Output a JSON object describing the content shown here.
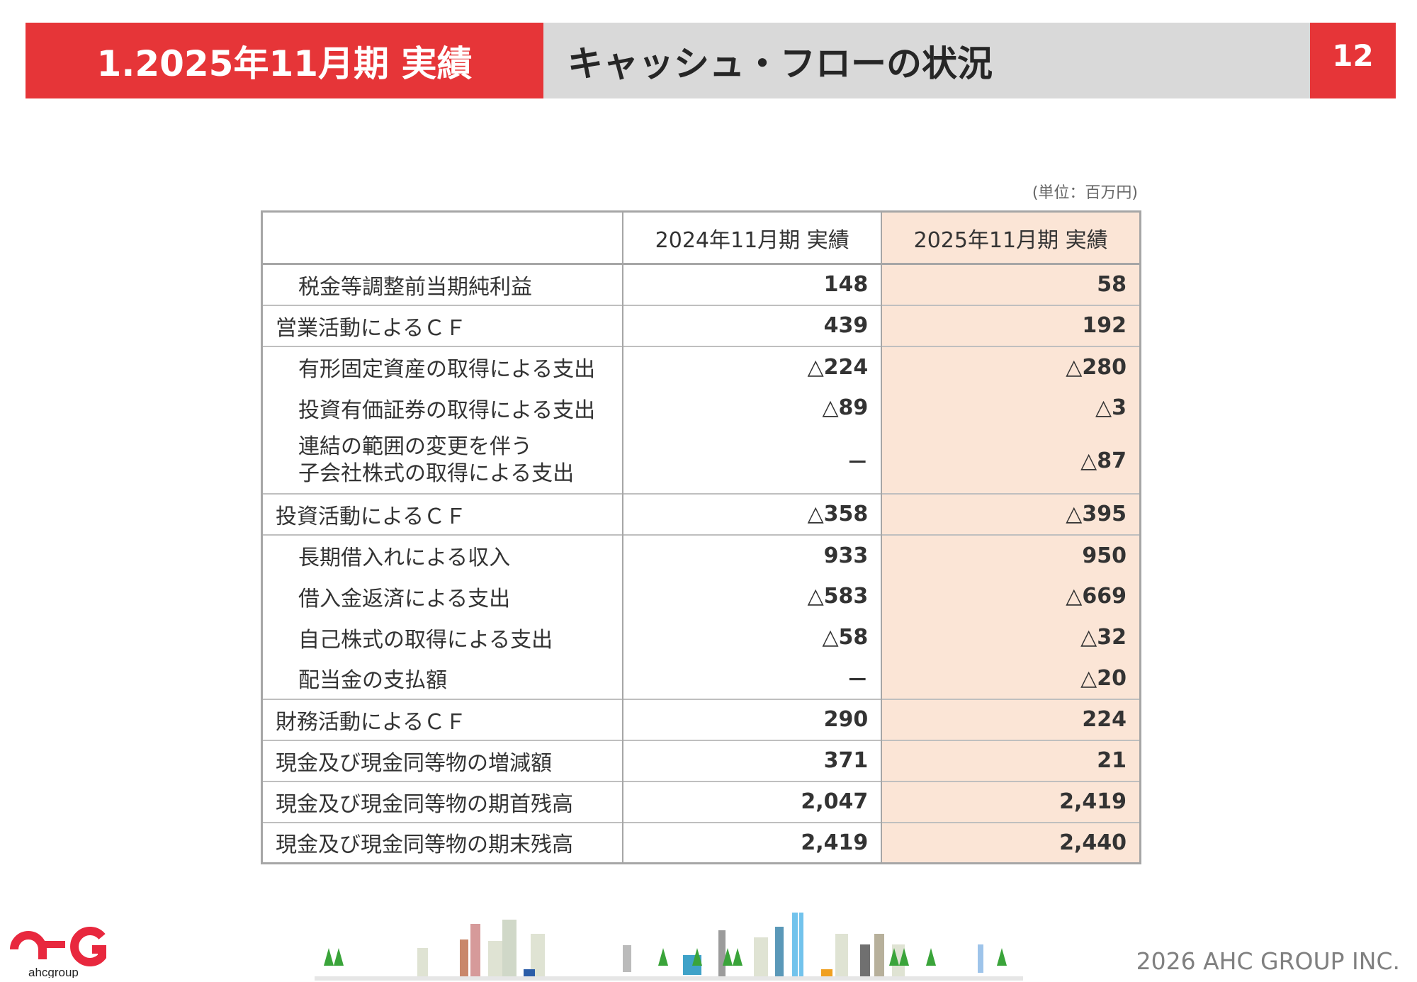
{
  "header": {
    "section": "1.2025年11月期 実績",
    "title": "キャッシュ・フローの状況",
    "page": "12"
  },
  "unit": "(単位：百万円)",
  "table": {
    "columns": [
      "",
      "2024年11月期 実績",
      "2025年11月期 実績"
    ],
    "rows": [
      {
        "label": "税金等調整前当期純利益",
        "v2024": "148",
        "v2025": "58"
      },
      {
        "label": "営業活動によるＣＦ",
        "v2024": "439",
        "v2025": "192"
      },
      {
        "label": "有形固定資産の取得による支出",
        "v2024": "△224",
        "v2025": "△280"
      },
      {
        "label": "投資有価証券の取得による支出",
        "v2024": "△89",
        "v2025": "△3"
      },
      {
        "label": "連結の範囲の変更を伴う",
        "label2": "子会社株式の取得による支出",
        "v2024": "－",
        "v2025": "△87"
      },
      {
        "label": "投資活動によるＣＦ",
        "v2024": "△358",
        "v2025": "△395"
      },
      {
        "label": "長期借入れによる収入",
        "v2024": "933",
        "v2025": "950"
      },
      {
        "label": "借入金返済による支出",
        "v2024": "△583",
        "v2025": "△669"
      },
      {
        "label": "自己株式の取得による支出",
        "v2024": "△58",
        "v2025": "△32"
      },
      {
        "label": "配当金の支払額",
        "v2024": "－",
        "v2025": "△20"
      },
      {
        "label": "財務活動によるＣＦ",
        "v2024": "290",
        "v2025": "224"
      },
      {
        "label": "現金及び現金同等物の増減額",
        "v2024": "371",
        "v2025": "21"
      },
      {
        "label": "現金及び現金同等物の期首残高",
        "v2024": "2,047",
        "v2025": "2,419"
      },
      {
        "label": "現金及び現金同等物の期末残高",
        "v2024": "2,419",
        "v2025": "2,440"
      }
    ]
  },
  "logo": {
    "text": "ahcgroup"
  },
  "footer": "2026 AHC GROUP INC.",
  "colors": {
    "accent": "#e63538",
    "header_gray": "#d9d9d9",
    "highlight": "#fbe5d6"
  }
}
